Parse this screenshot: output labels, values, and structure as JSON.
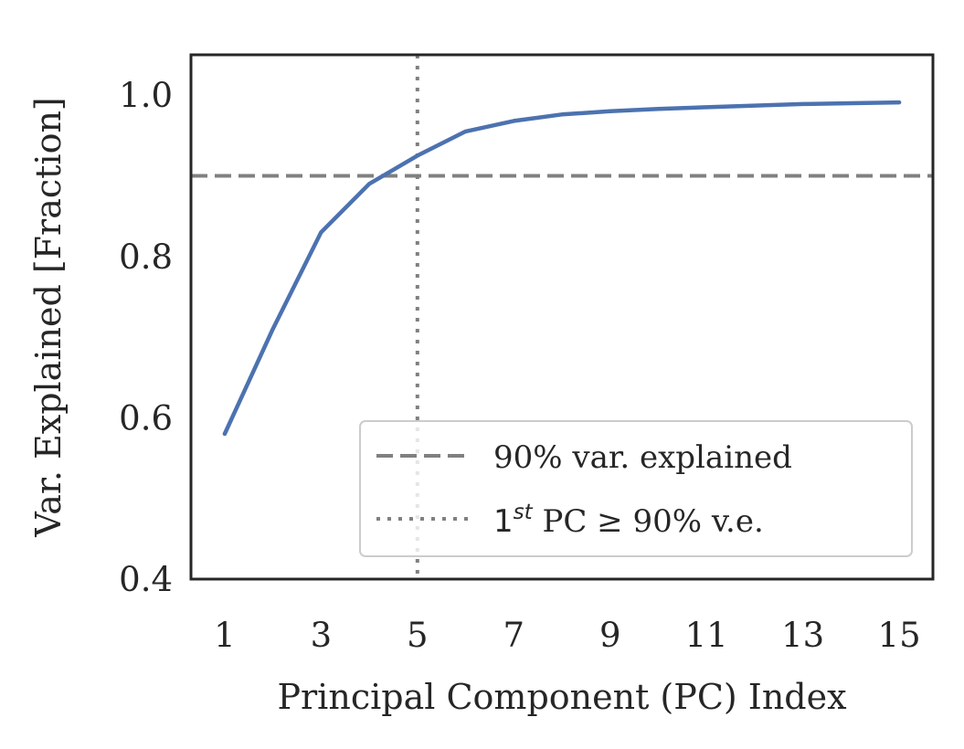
{
  "chart_data": {
    "type": "line",
    "title": "",
    "xlabel": "Principal Component (PC) Index",
    "ylabel": "Var. Explained [Fraction]",
    "xlim": [
      0.3,
      15.7
    ],
    "ylim": [
      0.4,
      1.05
    ],
    "xticks": [
      1,
      3,
      5,
      7,
      9,
      11,
      13,
      15
    ],
    "xtick_labels": [
      "1",
      "3",
      "5",
      "7",
      "9",
      "11",
      "13",
      "15"
    ],
    "yticks": [
      0.4,
      0.6,
      0.8,
      1.0
    ],
    "ytick_labels": [
      "0.4",
      "0.6",
      "0.8",
      "1.0"
    ],
    "grid": false,
    "series": [
      {
        "color": "#4c72b0",
        "x": [
          1,
          2,
          3,
          4,
          5,
          6,
          7,
          8,
          9,
          10,
          11,
          12,
          13,
          14,
          15
        ],
        "y": [
          0.58,
          0.71,
          0.83,
          0.89,
          0.925,
          0.955,
          0.968,
          0.976,
          0.98,
          0.983,
          0.985,
          0.987,
          0.989,
          0.99,
          0.991
        ]
      }
    ],
    "reference_lines": [
      {
        "orientation": "horizontal",
        "value": 0.9,
        "style": "dashed",
        "color": "#808080",
        "label": "90% var. explained"
      },
      {
        "orientation": "vertical",
        "value": 5,
        "style": "dotted",
        "color": "#808080",
        "label_prefix": "1",
        "label_superscript": "st",
        "label_suffix": " PC ≥ 90% v.e."
      }
    ],
    "legend_position": "lower-right"
  }
}
